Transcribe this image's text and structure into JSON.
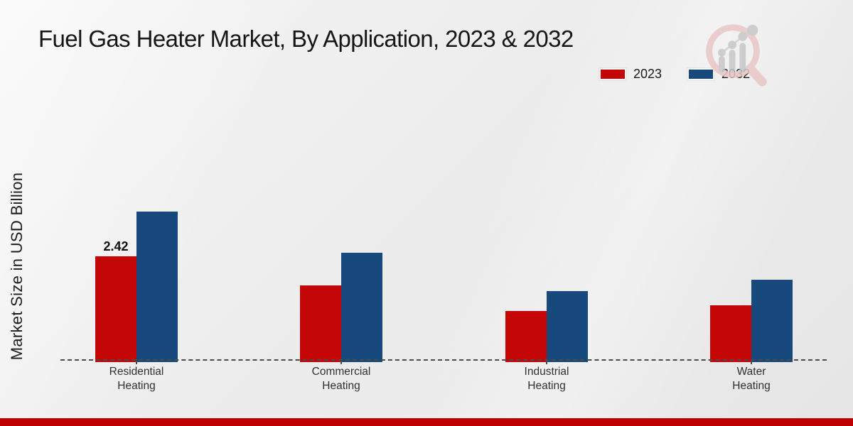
{
  "title": "Fuel Gas Heater Market, By Application, 2023 & 2032",
  "ylabel": "Market Size in USD Billion",
  "branding": {
    "logo": "magnifier-bar-chart-logo",
    "footer_bar_color": "#bf0000"
  },
  "chart_data": {
    "type": "bar",
    "title": "Fuel Gas Heater Market, By Application, 2023 & 2032",
    "ylabel": "Market Size in USD Billion",
    "xlabel": "",
    "categories": [
      "Residential Heating",
      "Commercial Heating",
      "Industrial Heating",
      "Water Heating"
    ],
    "series": [
      {
        "name": "2023",
        "color": "#c40606",
        "values": [
          2.42,
          1.74,
          1.14,
          1.28
        ]
      },
      {
        "name": "2032",
        "color": "#17497d",
        "values": [
          3.47,
          2.5,
          1.61,
          1.87
        ]
      }
    ],
    "data_labels": [
      {
        "series": "2023",
        "category_index": 0,
        "text": "2.42"
      }
    ],
    "ylim": [
      0,
      4
    ],
    "grid": false,
    "baseline_style": "dashed",
    "legend_position": "top-right"
  }
}
